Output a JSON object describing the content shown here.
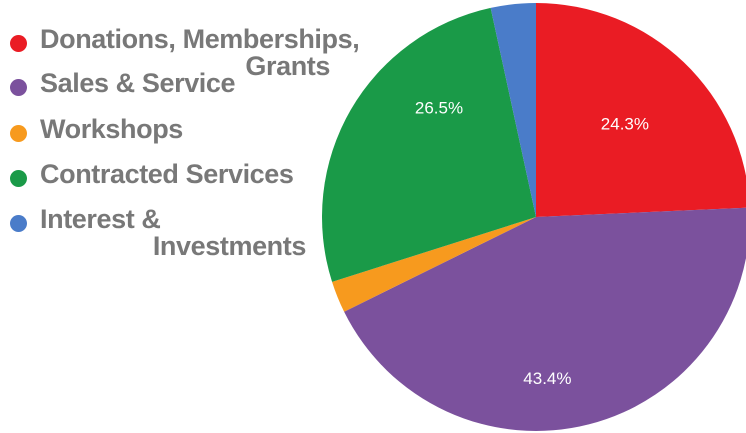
{
  "chart_data": {
    "type": "pie",
    "title": "",
    "legend_position": "left",
    "slices": [
      {
        "label": "Donations, Memberships, Grants",
        "value": 24.3,
        "display": "24.3%",
        "color": "#ea1c24"
      },
      {
        "label": "Sales & Service",
        "value": 43.4,
        "display": "43.4%",
        "color": "#7b519d"
      },
      {
        "label": "Workshops",
        "value": 2.4,
        "display": "",
        "color": "#f79a1e"
      },
      {
        "label": "Contracted Services",
        "value": 26.5,
        "display": "26.5%",
        "color": "#1a9a48"
      },
      {
        "label": "Interest & Investments",
        "value": 3.4,
        "display": "",
        "color": "#4a7cc9"
      }
    ]
  }
}
